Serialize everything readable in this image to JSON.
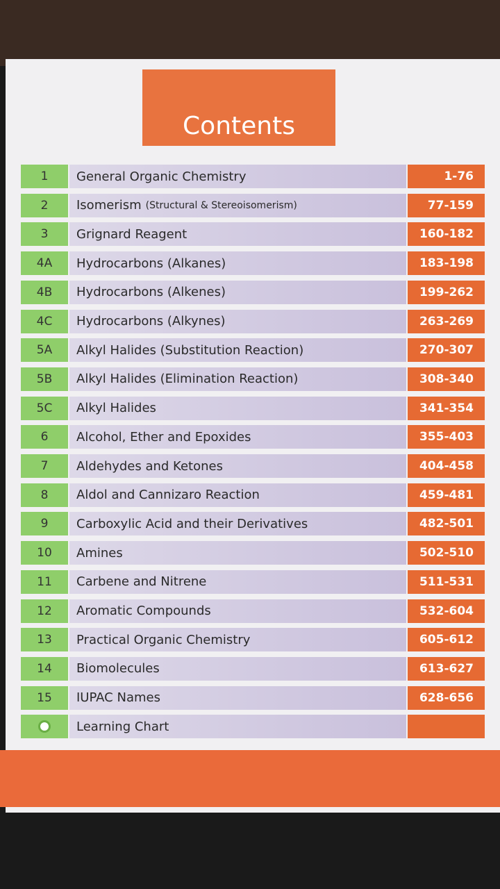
{
  "header": {
    "title": "Contents"
  },
  "table": {
    "rows": [
      {
        "number": "1",
        "title": "General Organic Chemistry",
        "pages": "1-76"
      },
      {
        "number": "2",
        "title": "Isomerism",
        "subtitle": "(Structural & Stereoisomerism)",
        "pages": "77-159"
      },
      {
        "number": "3",
        "title": "Grignard Reagent",
        "pages": "160-182"
      },
      {
        "number": "4A",
        "title": "Hydrocarbons (Alkanes)",
        "pages": "183-198"
      },
      {
        "number": "4B",
        "title": "Hydrocarbons (Alkenes)",
        "pages": "199-262"
      },
      {
        "number": "4C",
        "title": "Hydrocarbons (Alkynes)",
        "pages": "263-269"
      },
      {
        "number": "5A",
        "title": "Alkyl Halides (Substitution Reaction)",
        "pages": "270-307"
      },
      {
        "number": "5B",
        "title": "Alkyl Halides (Elimination Reaction)",
        "pages": "308-340"
      },
      {
        "number": "5C",
        "title": "Alkyl Halides",
        "pages": "341-354"
      },
      {
        "number": "6",
        "title": "Alcohol, Ether and Epoxides",
        "pages": "355-403"
      },
      {
        "number": "7",
        "title": "Aldehydes and Ketones",
        "pages": "404-458"
      },
      {
        "number": "8",
        "title": "Aldol and Cannizaro Reaction",
        "pages": "459-481"
      },
      {
        "number": "9",
        "title": "Carboxylic Acid and their Derivatives",
        "pages": "482-501"
      },
      {
        "number": "10",
        "title": "Amines",
        "pages": "502-510"
      },
      {
        "number": "11",
        "title": "Carbene and Nitrene",
        "pages": "511-531"
      },
      {
        "number": "12",
        "title": "Aromatic Compounds",
        "pages": "532-604"
      },
      {
        "number": "13",
        "title": "Practical Organic Chemistry",
        "pages": "605-612"
      },
      {
        "number": "14",
        "title": "Biomolecules",
        "pages": "613-627"
      },
      {
        "number": "15",
        "title": "IUPAC Names",
        "pages": "628-656"
      },
      {
        "title": "Learning Chart"
      }
    ]
  }
}
